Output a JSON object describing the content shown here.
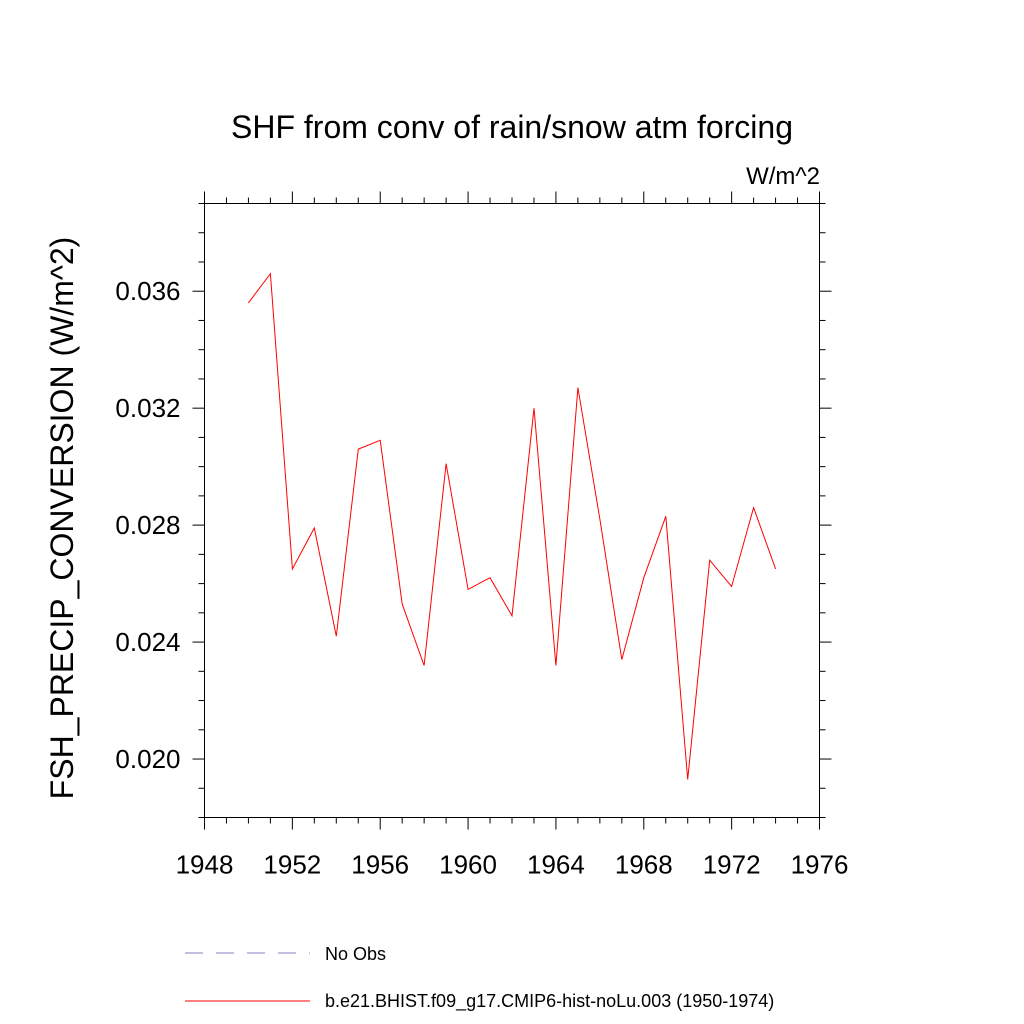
{
  "chart_data": {
    "type": "line",
    "title": "SHF from conv of rain/snow atm forcing",
    "units": "W/m^2",
    "ylabel": "FSH_PRECIP_CONVERSION  (W/m^2)",
    "xlabel": "",
    "xlim": [
      1948,
      1976
    ],
    "ylim": [
      0.018,
      0.039
    ],
    "x_ticks": [
      1948,
      1952,
      1956,
      1960,
      1964,
      1968,
      1972,
      1976
    ],
    "y_ticks": [
      0.02,
      0.024,
      0.028,
      0.032,
      0.036
    ],
    "x_tick_labels": [
      "1948",
      "1952",
      "1956",
      "1960",
      "1964",
      "1968",
      "1972",
      "1976"
    ],
    "y_tick_labels": [
      "0.020",
      "0.024",
      "0.028",
      "0.032",
      "0.036"
    ],
    "grid": false,
    "legend_position": "bottom",
    "legend": [
      {
        "label": "No Obs",
        "color": "#8080c0",
        "style": "dashed"
      },
      {
        "label": "b.e21.BHIST.f09_g17.CMIP6-hist-noLu.003 (1950-1974)",
        "color": "#ff0000",
        "style": "solid"
      }
    ],
    "series": [
      {
        "name": "b.e21.BHIST.f09_g17.CMIP6-hist-noLu.003 (1950-1974)",
        "color": "#ff0000",
        "x": [
          1950,
          1951,
          1952,
          1953,
          1954,
          1955,
          1956,
          1957,
          1958,
          1959,
          1960,
          1961,
          1962,
          1963,
          1964,
          1965,
          1966,
          1967,
          1968,
          1969,
          1970,
          1971,
          1972,
          1973,
          1974
        ],
        "values": [
          0.0356,
          0.0366,
          0.0265,
          0.0279,
          0.0242,
          0.0306,
          0.0309,
          0.0253,
          0.0232,
          0.0301,
          0.0258,
          0.0262,
          0.0249,
          0.032,
          0.0232,
          0.0327,
          0.0282,
          0.0234,
          0.0262,
          0.0283,
          0.0193,
          0.0268,
          0.0259,
          0.0286,
          0.0265
        ]
      }
    ]
  }
}
